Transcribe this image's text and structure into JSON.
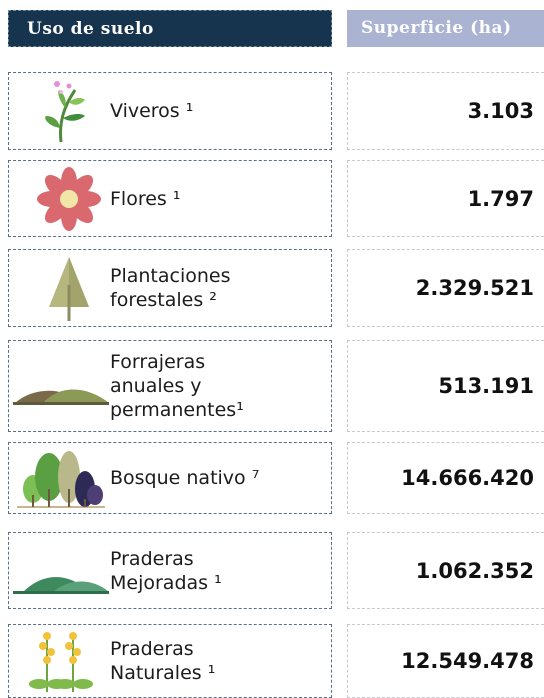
{
  "header": {
    "left": "Uso de suelo",
    "right": "Superficie (ha)"
  },
  "rows": [
    {
      "label_lines": [
        "Viveros ¹"
      ],
      "value": "3.103"
    },
    {
      "label_lines": [
        "Flores ¹"
      ],
      "value": "1.797"
    },
    {
      "label_lines": [
        "Plantaciones",
        "forestales ²"
      ],
      "value": "2.329.521"
    },
    {
      "label_lines": [
        "Forrajeras",
        "anuales y",
        "permanentes¹"
      ],
      "value": "513.191"
    },
    {
      "label_lines": [
        "Bosque nativo ⁷"
      ],
      "value": "14.666.420"
    },
    {
      "label_lines": [
        "Praderas",
        "Mejoradas ¹"
      ],
      "value": "1.062.352"
    },
    {
      "label_lines": [
        "Praderas",
        "Naturales ¹"
      ],
      "value": "12.549.478"
    }
  ]
}
